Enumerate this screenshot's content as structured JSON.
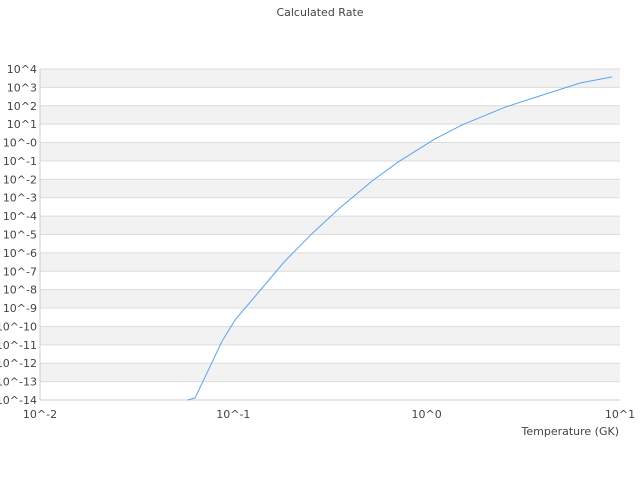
{
  "chart_data": {
    "type": "line",
    "title": "Calculated Rate",
    "xlabel": "Temperature (GK)",
    "ylabel": "",
    "x_scale": "log",
    "y_scale": "log",
    "xlim": [
      0.01,
      10
    ],
    "ylim": [
      1e-14,
      10000
    ],
    "grid": "horizontal bands",
    "x_ticks": [
      "10^-2",
      "10^-1",
      "10^0",
      "10^1"
    ],
    "y_ticks": [
      "10^4",
      "10^3",
      "10^2",
      "10^1",
      "10^-0",
      "10^-1",
      "10^-2",
      "10^-3",
      "10^-4",
      "10^-5",
      "10^-6",
      "10^-7",
      "10^-8",
      "10^-9",
      "10^-10",
      "10^-11",
      "10^-12",
      "10^-13",
      "10^-14"
    ],
    "series": [
      {
        "color": "#5aa5f0",
        "x": [
          0.058,
          0.0634,
          0.0875,
          0.102,
          0.134,
          0.183,
          0.255,
          0.356,
          0.522,
          0.711,
          1.1,
          1.52,
          2.55,
          3.43,
          6.22,
          9.1
        ],
        "y": [
          1e-14,
          1.3e-14,
          1.6e-11,
          2.2e-10,
          6.6e-09,
          3.2e-07,
          1.1e-05,
          0.00028,
          0.0081,
          0.087,
          1.55,
          8.9,
          85,
          234,
          1740,
          3700
        ]
      }
    ]
  }
}
